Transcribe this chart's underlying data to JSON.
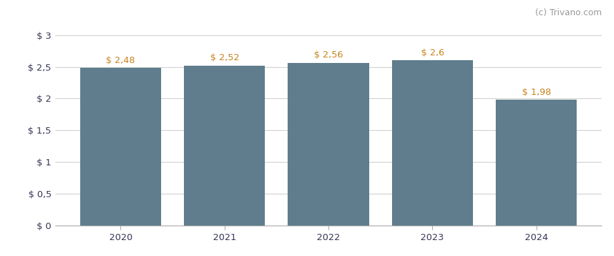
{
  "years": [
    2020,
    2021,
    2022,
    2023,
    2024
  ],
  "values": [
    2.48,
    2.52,
    2.56,
    2.6,
    1.98
  ],
  "bar_color": "#5f7d8c",
  "bar_labels": [
    "$ 2,48",
    "$ 2,52",
    "$ 2,56",
    "$ 2,6",
    "$ 1,98"
  ],
  "label_color": "#c8821a",
  "yticks": [
    0,
    0.5,
    1.0,
    1.5,
    2.0,
    2.5,
    3.0
  ],
  "ytick_labels": [
    "$ 0",
    "$ 0,5",
    "$ 1",
    "$ 1,5",
    "$ 2",
    "$ 2,5",
    "$ 3"
  ],
  "ylim": [
    0,
    3.15
  ],
  "background_color": "#ffffff",
  "grid_color": "#d0d0d0",
  "watermark": "(c) Trivano.com",
  "watermark_color": "#999999",
  "bar_width": 0.78,
  "tick_label_color": "#333355",
  "label_fontsize": 9.5,
  "tick_fontsize": 9.5
}
